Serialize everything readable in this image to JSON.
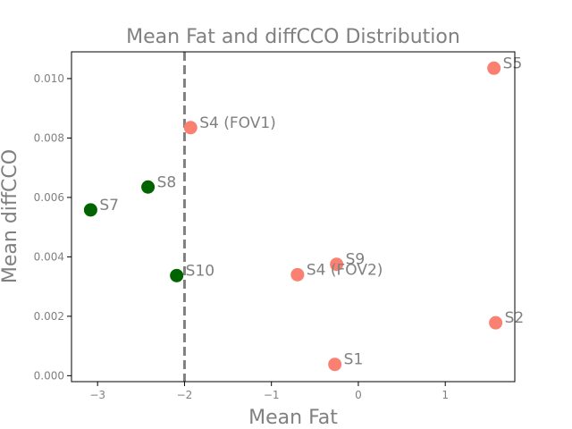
{
  "chart_data": {
    "type": "scatter",
    "title": "Mean Fat and diffCCO Distribution",
    "xlabel": "Mean Fat",
    "ylabel": "Mean diffCCO",
    "xlim": [
      -3.3,
      1.8
    ],
    "ylim": [
      -0.0002,
      0.0109
    ],
    "xticks": [
      -3,
      -2,
      -1,
      0,
      1
    ],
    "xtick_labels": [
      "−3",
      "−2",
      "−1",
      "0",
      "1"
    ],
    "yticks": [
      0.0,
      0.002,
      0.004,
      0.006,
      0.008,
      0.01
    ],
    "ytick_labels": [
      "0.000",
      "0.002",
      "0.004",
      "0.006",
      "0.008",
      "0.010"
    ],
    "grid": false,
    "threshold_line": {
      "x": -2,
      "style": "dashed",
      "color": "#808080"
    },
    "colors": {
      "salmon": "#fa8072",
      "green": "#006400",
      "text": "#808080"
    },
    "points": [
      {
        "label": "S5",
        "x": 1.56,
        "y": 0.01035,
        "color": "salmon"
      },
      {
        "label": "S4 (FOV1)",
        "x": -1.93,
        "y": 0.00835,
        "color": "salmon"
      },
      {
        "label": "S8",
        "x": -2.42,
        "y": 0.00635,
        "color": "green"
      },
      {
        "label": "S7",
        "x": -3.08,
        "y": 0.00558,
        "color": "green"
      },
      {
        "label": "S9",
        "x": -0.25,
        "y": 0.00375,
        "color": "salmon"
      },
      {
        "label": "S4 (FOV2)",
        "x": -0.7,
        "y": 0.0034,
        "color": "salmon"
      },
      {
        "label": "S10",
        "x": -2.09,
        "y": 0.00337,
        "color": "green"
      },
      {
        "label": "S2",
        "x": 1.58,
        "y": 0.00178,
        "color": "salmon"
      },
      {
        "label": "S1",
        "x": -0.27,
        "y": 0.00038,
        "color": "salmon"
      }
    ]
  }
}
